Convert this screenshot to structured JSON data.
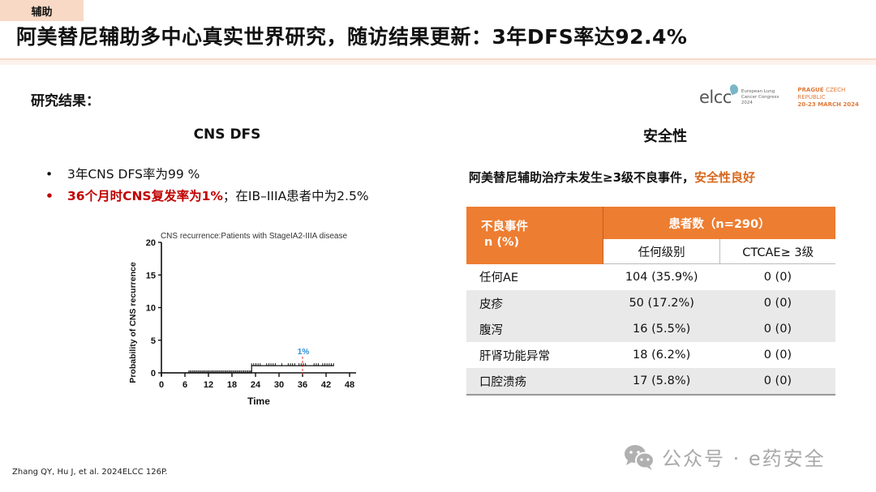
{
  "header": {
    "tag": "辅助",
    "title": "阿美替尼辅助多中心真实世界研究，随访结果更新：3年DFS率达92.4%"
  },
  "section_label": "研究结果：",
  "logo": {
    "name": "elcc",
    "subtitle_line1": "European Lung",
    "subtitle_line2": "Cancer Congress 2024",
    "location_bold": "PRAGUE",
    "location_light": "CZECH REPUBLIC",
    "dates": "20-23 MARCH 2024",
    "accent_color": "#e07a3a"
  },
  "cns": {
    "heading": "CNS DFS",
    "bullets": [
      {
        "dot": "•",
        "text": "3年CNS DFS率为99 %"
      },
      {
        "dot": "•",
        "highlight": "36个月时CNS复发率为1%",
        "rest": "；在IB–IIIA患者中为2.5%"
      }
    ]
  },
  "chart_data": {
    "type": "line",
    "title": "CNS recurrence:Patients with StageIA2-IIIA disease",
    "xlabel": "Time",
    "ylabel": "Probability of CNS recurrence",
    "xlim": [
      0,
      48
    ],
    "ylim": [
      0,
      20
    ],
    "xticks": [
      0,
      6,
      12,
      18,
      24,
      30,
      36,
      42,
      48
    ],
    "yticks": [
      0,
      5,
      10,
      15,
      20
    ],
    "series": [
      {
        "name": "CNS recurrence (step)",
        "x": [
          0,
          23,
          23,
          44
        ],
        "y": [
          0,
          0,
          1.1,
          1.1
        ]
      }
    ],
    "censor_ranges": [
      [
        7,
        23
      ],
      [
        23,
        44
      ]
    ],
    "annotation": {
      "x": 36,
      "label": "1%",
      "label_color": "#2b8fd6",
      "line_color": "#e03030",
      "line_style": "dashed"
    },
    "grid": false
  },
  "safety": {
    "heading": "安全性",
    "subtitle_prefix": "阿美替尼辅助治疗未发生≥3级不良事件，",
    "subtitle_highlight": "安全性良好",
    "highlight_color": "#d9681e",
    "table": {
      "header_color": "#ed7d31",
      "col0_line1": "不良事件",
      "col0_line2": "n (%)",
      "group_header": "患者数（n=290）",
      "sub_headers": [
        "任何级别",
        "CTCAE≥ 3级"
      ],
      "rows": [
        {
          "name": "任何AE",
          "any": "104 (35.9%)",
          "g3": "0 (0)"
        },
        {
          "name": "皮疹",
          "any": "50 (17.2%)",
          "g3": "0 (0)"
        },
        {
          "name": "腹泻",
          "any": "16 (5.5%)",
          "g3": "0 (0)"
        },
        {
          "name": "肝肾功能异常",
          "any": "18 (6.2%)",
          "g3": "0 (0)"
        },
        {
          "name": "口腔溃疡",
          "any": "17 (5.8%)",
          "g3": "0 (0)"
        }
      ]
    }
  },
  "citation": "Zhang QY, Hu J, et al. 2024ELCC 126P.",
  "watermark": {
    "icon": "wechat-icon",
    "text": "公众号 · e药安全"
  }
}
